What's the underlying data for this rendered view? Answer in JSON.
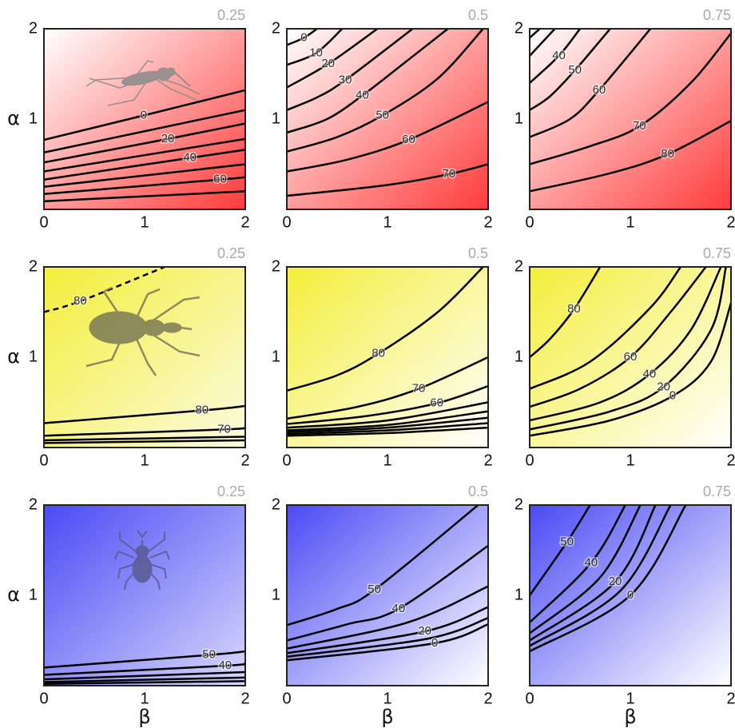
{
  "chart_data": [
    {
      "type": "contour",
      "title": "0.25",
      "ylabel": "α",
      "xlim": [
        0,
        2
      ],
      "ylim": [
        0,
        2
      ],
      "xticks": [
        0,
        1,
        2
      ],
      "yticks": [
        1,
        2
      ],
      "colors": [
        "#ffffff",
        "#ff3b3b"
      ],
      "series": [
        {
          "label": 0,
          "x": [
            0,
            0.99,
            2
          ],
          "values": [
            0.77,
            1.04,
            1.32
          ]
        },
        {
          "x": [
            0,
            2
          ],
          "values": [
            0.63,
            1.1
          ]
        },
        {
          "label": 20,
          "x": [
            0,
            1.23,
            2
          ],
          "values": [
            0.52,
            0.78,
            0.95
          ]
        },
        {
          "x": [
            0,
            2
          ],
          "values": [
            0.42,
            0.78
          ]
        },
        {
          "label": 40,
          "x": [
            0,
            1.45,
            2
          ],
          "values": [
            0.33,
            0.57,
            0.66
          ]
        },
        {
          "x": [
            0,
            2
          ],
          "values": [
            0.25,
            0.5
          ]
        },
        {
          "label": 60,
          "x": [
            0,
            1.75,
            2
          ],
          "values": [
            0.17,
            0.33,
            0.36
          ]
        },
        {
          "x": [
            0,
            2
          ],
          "values": [
            0.09,
            0.2
          ]
        }
      ]
    },
    {
      "type": "contour",
      "title": "0.5",
      "xlim": [
        0,
        2
      ],
      "ylim": [
        0,
        2
      ],
      "xticks": [
        0,
        1,
        2
      ],
      "yticks": [
        1,
        2
      ],
      "colors": [
        "#ffffff",
        "#ff3b3b"
      ],
      "series": [
        {
          "label": 0,
          "x": [
            0,
            0.17,
            0.3
          ],
          "values": [
            1.82,
            1.9,
            2
          ]
        },
        {
          "label": 10,
          "x": [
            0,
            0.29,
            0.55
          ],
          "values": [
            1.6,
            1.73,
            2
          ]
        },
        {
          "label": 20,
          "x": [
            0,
            0.41,
            0.9
          ],
          "values": [
            1.35,
            1.61,
            2
          ]
        },
        {
          "label": 30,
          "x": [
            0,
            0.3,
            0.58,
            1.25
          ],
          "values": [
            1.1,
            1.24,
            1.43,
            2
          ]
        },
        {
          "label": 40,
          "x": [
            0,
            0.4,
            0.75,
            1.2,
            1.6
          ],
          "values": [
            0.85,
            1.0,
            1.26,
            1.65,
            2
          ]
        },
        {
          "label": 50,
          "x": [
            0,
            0.5,
            0.95,
            1.5,
            1.95
          ],
          "values": [
            0.64,
            0.8,
            1.04,
            1.45,
            2
          ]
        },
        {
          "label": 60,
          "x": [
            0,
            0.6,
            1.21,
            2
          ],
          "values": [
            0.42,
            0.55,
            0.77,
            1.19
          ]
        },
        {
          "label": 70,
          "x": [
            0,
            1,
            1.61,
            2
          ],
          "values": [
            0.15,
            0.27,
            0.39,
            0.5
          ]
        }
      ]
    },
    {
      "type": "contour",
      "title": "0.75",
      "xlim": [
        0,
        2
      ],
      "ylim": [
        0,
        2
      ],
      "xticks": [
        0,
        1,
        2
      ],
      "yticks": [
        1,
        2
      ],
      "colors": [
        "#ffffff",
        "#ff3b3b"
      ],
      "series": [
        {
          "x": [
            0,
            0.1
          ],
          "values": [
            1.9,
            2
          ]
        },
        {
          "x": [
            0,
            0.25
          ],
          "values": [
            1.7,
            2
          ]
        },
        {
          "label": 40,
          "x": [
            0,
            0.29,
            0.5
          ],
          "values": [
            1.4,
            1.7,
            2
          ]
        },
        {
          "label": 50,
          "x": [
            0,
            0.2,
            0.45,
            0.8
          ],
          "values": [
            1.1,
            1.25,
            1.54,
            2
          ]
        },
        {
          "label": 60,
          "x": [
            0,
            0.4,
            0.69,
            1.2
          ],
          "values": [
            0.8,
            1.0,
            1.32,
            2
          ]
        },
        {
          "label": 70,
          "x": [
            0,
            0.6,
            1.09,
            1.6,
            2
          ],
          "values": [
            0.5,
            0.7,
            0.92,
            1.4,
            1.95
          ]
        },
        {
          "label": 80,
          "x": [
            0,
            0.8,
            1.37,
            2
          ],
          "values": [
            0.2,
            0.4,
            0.61,
            0.98
          ]
        }
      ]
    },
    {
      "type": "contour",
      "title": "0.25",
      "ylabel": "α",
      "xlim": [
        0,
        2
      ],
      "ylim": [
        0,
        2
      ],
      "xticks": [
        0,
        1,
        2
      ],
      "yticks": [
        1,
        2
      ],
      "colors": [
        "#f4ee3a",
        "#fbfbe0"
      ],
      "series": [
        {
          "label": 80,
          "dashed": true,
          "x": [
            0,
            0.36,
            1.2
          ],
          "values": [
            1.5,
            1.62,
            2
          ]
        },
        {
          "label": 80,
          "x": [
            0,
            1.57,
            2
          ],
          "values": [
            0.27,
            0.41,
            0.46
          ]
        },
        {
          "label": 70,
          "x": [
            0,
            1.79,
            2
          ],
          "values": [
            0.13,
            0.2,
            0.22
          ]
        },
        {
          "x": [
            0,
            2
          ],
          "values": [
            0.08,
            0.12
          ]
        },
        {
          "x": [
            0,
            2
          ],
          "values": [
            0.05,
            0.08
          ]
        }
      ]
    },
    {
      "type": "contour",
      "title": "0.5",
      "xlim": [
        0,
        2
      ],
      "ylim": [
        0,
        2
      ],
      "xticks": [
        0,
        1,
        2
      ],
      "yticks": [
        1,
        2
      ],
      "colors": [
        "#f4ee3a",
        "#ffffff"
      ],
      "series": [
        {
          "label": 80,
          "x": [
            0,
            0.5,
            0.91,
            1.5,
            1.95
          ],
          "values": [
            0.63,
            0.8,
            1.04,
            1.5,
            2
          ]
        },
        {
          "label": 70,
          "x": [
            0,
            0.7,
            1.31,
            2
          ],
          "values": [
            0.32,
            0.45,
            0.65,
            1.0
          ]
        },
        {
          "label": 60,
          "x": [
            0,
            0.8,
            1.49,
            2
          ],
          "values": [
            0.26,
            0.35,
            0.49,
            0.68
          ]
        },
        {
          "x": [
            0,
            1,
            2
          ],
          "values": [
            0.22,
            0.3,
            0.5
          ]
        },
        {
          "x": [
            0,
            1,
            2
          ],
          "values": [
            0.19,
            0.25,
            0.4
          ]
        },
        {
          "x": [
            0,
            1,
            2
          ],
          "values": [
            0.17,
            0.22,
            0.33
          ]
        },
        {
          "x": [
            0,
            1,
            2
          ],
          "values": [
            0.15,
            0.19,
            0.27
          ]
        },
        {
          "x": [
            0,
            1,
            2
          ],
          "values": [
            0.13,
            0.16,
            0.22
          ]
        }
      ]
    },
    {
      "type": "contour",
      "title": "0.75",
      "xlim": [
        0,
        2
      ],
      "ylim": [
        0,
        2
      ],
      "xticks": [
        0,
        1,
        2
      ],
      "yticks": [
        1,
        2
      ],
      "colors": [
        "#f4ee3a",
        "#ffffff"
      ],
      "series": [
        {
          "label": 80,
          "x": [
            0,
            0.2,
            0.44,
            0.7
          ],
          "values": [
            1.0,
            1.2,
            1.53,
            2
          ]
        },
        {
          "x": [
            0,
            0.6,
            1.2,
            1.5
          ],
          "values": [
            0.65,
            0.95,
            1.55,
            2
          ]
        },
        {
          "label": 60,
          "x": [
            0,
            0.5,
            1.0,
            1.4,
            1.75
          ],
          "values": [
            0.45,
            0.65,
            1.0,
            1.5,
            2
          ]
        },
        {
          "label": 40,
          "x": [
            0,
            0.7,
            1.19,
            1.6,
            1.9
          ],
          "values": [
            0.3,
            0.5,
            0.81,
            1.3,
            2
          ]
        },
        {
          "label": 20,
          "x": [
            0,
            0.8,
            1.33,
            1.8,
            1.95
          ],
          "values": [
            0.2,
            0.4,
            0.67,
            1.3,
            2
          ]
        },
        {
          "label": 0,
          "x": [
            0,
            0.8,
            1.42,
            1.8,
            2
          ],
          "values": [
            0.13,
            0.3,
            0.57,
            0.95,
            1.6
          ]
        }
      ]
    },
    {
      "type": "contour",
      "title": "0.25",
      "ylabel": "α",
      "xlabel": "β",
      "xlim": [
        0,
        2
      ],
      "ylim": [
        0,
        2
      ],
      "xticks": [
        0,
        1,
        2
      ],
      "yticks": [
        1,
        2
      ],
      "colors": [
        "#4a4af5",
        "#d8d8fc"
      ],
      "series": [
        {
          "label": 50,
          "x": [
            0,
            1.64,
            2
          ],
          "values": [
            0.2,
            0.34,
            0.38
          ]
        },
        {
          "label": 40,
          "x": [
            0,
            1.8,
            2
          ],
          "values": [
            0.12,
            0.22,
            0.25
          ]
        },
        {
          "x": [
            0,
            2
          ],
          "values": [
            0.07,
            0.15
          ]
        },
        {
          "x": [
            0,
            2
          ],
          "values": [
            0.04,
            0.09
          ]
        },
        {
          "x": [
            0,
            2
          ],
          "values": [
            0.02,
            0.05
          ]
        }
      ]
    },
    {
      "type": "contour",
      "title": "0.5",
      "xlabel": "β",
      "xlim": [
        0,
        2
      ],
      "ylim": [
        0,
        2
      ],
      "xticks": [
        0,
        1,
        2
      ],
      "yticks": [
        1,
        2
      ],
      "colors": [
        "#4a4af5",
        "#ffffff"
      ],
      "series": [
        {
          "label": 50,
          "x": [
            0,
            0.5,
            0.87,
            1.9
          ],
          "values": [
            0.67,
            0.85,
            1.06,
            2
          ]
        },
        {
          "label": 40,
          "x": [
            0,
            0.6,
            1.11,
            2
          ],
          "values": [
            0.5,
            0.68,
            0.85,
            1.55
          ]
        },
        {
          "x": [
            0,
            1.2,
            2
          ],
          "values": [
            0.41,
            0.7,
            1.1
          ]
        },
        {
          "label": 20,
          "x": [
            0,
            1.37,
            2
          ],
          "values": [
            0.36,
            0.6,
            0.87
          ]
        },
        {
          "x": [
            0,
            1.4,
            2
          ],
          "values": [
            0.32,
            0.52,
            0.75
          ]
        },
        {
          "label": 0,
          "x": [
            0,
            1.47,
            2
          ],
          "values": [
            0.28,
            0.47,
            0.68
          ]
        }
      ]
    },
    {
      "type": "contour",
      "title": "0.75",
      "xlabel": "β",
      "xlim": [
        0,
        2
      ],
      "ylim": [
        0,
        2
      ],
      "xticks": [
        0,
        1,
        2
      ],
      "yticks": [
        1,
        2
      ],
      "colors": [
        "#4a4af5",
        "#ffffff"
      ],
      "series": [
        {
          "label": 50,
          "x": [
            0,
            0.37,
            0.6
          ],
          "values": [
            1.0,
            1.59,
            2
          ]
        },
        {
          "label": 40,
          "x": [
            0,
            0.61,
            0.95
          ],
          "values": [
            0.7,
            1.36,
            2
          ]
        },
        {
          "x": [
            0,
            0.7,
            1.1
          ],
          "values": [
            0.58,
            1.2,
            2
          ]
        },
        {
          "label": 20,
          "x": [
            0,
            0.85,
            1.25
          ],
          "values": [
            0.5,
            1.15,
            2
          ]
        },
        {
          "x": [
            0,
            0.9,
            1.4
          ],
          "values": [
            0.44,
            1.05,
            2
          ]
        },
        {
          "label": 0,
          "x": [
            0,
            1.0,
            1.55
          ],
          "values": [
            0.38,
            1.0,
            2
          ]
        }
      ]
    }
  ]
}
